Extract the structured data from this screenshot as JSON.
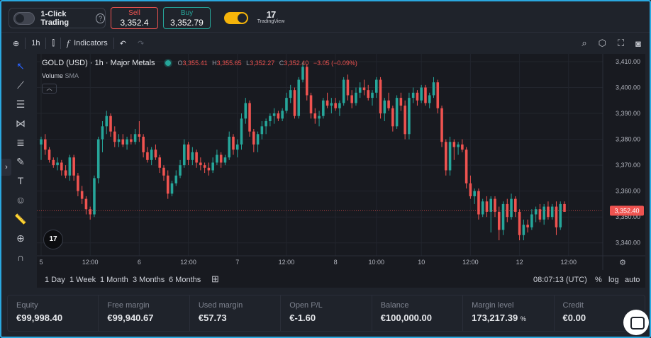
{
  "topbar": {
    "one_click_label": "1-Click Trading",
    "help_icon": "?",
    "sell": {
      "label": "Sell",
      "price": "3,352.4"
    },
    "buy": {
      "label": "Buy",
      "price": "3,352.79"
    },
    "brand_mark": "17",
    "brand_name": "TradingView"
  },
  "chart_toolbar": {
    "interval": "1h",
    "indicators_label": "Indicators",
    "indicators_prefix": "f"
  },
  "legend": {
    "symbol": "GOLD (USD) · 1h · Major Metals",
    "open_label": "O",
    "open": "3,355.41",
    "high_label": "H",
    "high": "3,355.65",
    "low_label": "L",
    "low": "3,352.27",
    "close_label": "C",
    "close": "3,352.40",
    "change": "−3.05 (−0.09%)",
    "volume_label": "Volume",
    "volume_ma": "SMA"
  },
  "range_bar": {
    "ranges": [
      "1 Day",
      "1 Week",
      "1 Month",
      "3 Months",
      "6 Months"
    ],
    "clock": "08:07:13 (UTC)",
    "percent": "%",
    "log": "log",
    "auto": "auto"
  },
  "account": [
    {
      "label": "Equity",
      "value": "€99,998.40"
    },
    {
      "label": "Free margin",
      "value": "€99,940.67"
    },
    {
      "label": "Used margin",
      "value": "€57.73"
    },
    {
      "label": "Open P/L",
      "value": "€-1.60"
    },
    {
      "label": "Balance",
      "value": "€100,000.00"
    },
    {
      "label": "Margin level",
      "value": "173,217.39",
      "suffix": "%"
    },
    {
      "label": "Credit",
      "value": "€0.00"
    }
  ],
  "colors": {
    "up": "#26a69a",
    "down": "#ef5350",
    "accent": "#f5b40a",
    "background": "#181a20"
  },
  "chart_data": {
    "type": "candlestick",
    "ylim": [
      3335,
      3413
    ],
    "y_ticks": [
      3340,
      3350,
      3360,
      3370,
      3380,
      3390,
      3400,
      3410
    ],
    "y_tick_labels": [
      "3,340.00",
      "3,350.00",
      "3,360.00",
      "3,370.00",
      "3,380.00",
      "3,390.00",
      "3,400.00",
      "3,410.00"
    ],
    "x_tick_labels": [
      {
        "label": "5",
        "index": 0
      },
      {
        "label": "12:00",
        "index": 12
      },
      {
        "label": "6",
        "index": 24
      },
      {
        "label": "12:00",
        "index": 36
      },
      {
        "label": "7",
        "index": 48
      },
      {
        "label": "12:00",
        "index": 60
      },
      {
        "label": "8",
        "index": 72
      },
      {
        "label": "10:00",
        "index": 82
      },
      {
        "label": "10",
        "index": 93
      },
      {
        "label": "12:00",
        "index": 105
      },
      {
        "label": "12",
        "index": 117
      },
      {
        "label": "12:00",
        "index": 129
      }
    ],
    "current_price": 3352.4,
    "current_price_label": "3,352.40",
    "candles": [
      [
        3378,
        3381,
        3372,
        3380
      ],
      [
        3380,
        3382,
        3374,
        3376
      ],
      [
        3376,
        3377,
        3371,
        3372
      ],
      [
        3372,
        3373,
        3369,
        3370
      ],
      [
        3370,
        3373,
        3368,
        3371
      ],
      [
        3371,
        3372,
        3366,
        3368
      ],
      [
        3368,
        3370,
        3365,
        3366
      ],
      [
        3366,
        3374,
        3364,
        3373
      ],
      [
        3373,
        3374,
        3364,
        3366
      ],
      [
        3366,
        3367,
        3358,
        3360
      ],
      [
        3360,
        3362,
        3355,
        3357
      ],
      [
        3357,
        3358,
        3351,
        3353
      ],
      [
        3353,
        3354,
        3349,
        3351
      ],
      [
        3351,
        3366,
        3350,
        3365
      ],
      [
        3365,
        3381,
        3363,
        3380
      ],
      [
        3380,
        3387,
        3375,
        3385
      ],
      [
        3385,
        3391,
        3382,
        3389
      ],
      [
        3389,
        3390,
        3381,
        3383
      ],
      [
        3383,
        3385,
        3377,
        3379
      ],
      [
        3379,
        3382,
        3377,
        3380
      ],
      [
        3380,
        3382,
        3377,
        3378
      ],
      [
        3378,
        3381,
        3376,
        3380
      ],
      [
        3380,
        3382,
        3378,
        3379
      ],
      [
        3379,
        3384,
        3378,
        3382
      ],
      [
        3382,
        3387,
        3379,
        3381
      ],
      [
        3381,
        3382,
        3373,
        3375
      ],
      [
        3375,
        3377,
        3371,
        3372
      ],
      [
        3372,
        3377,
        3370,
        3376
      ],
      [
        3376,
        3378,
        3372,
        3373
      ],
      [
        3373,
        3374,
        3367,
        3369
      ],
      [
        3369,
        3370,
        3364,
        3366
      ],
      [
        3366,
        3368,
        3357,
        3359
      ],
      [
        3359,
        3364,
        3358,
        3363
      ],
      [
        3363,
        3368,
        3362,
        3366
      ],
      [
        3366,
        3372,
        3365,
        3370
      ],
      [
        3370,
        3380,
        3369,
        3378
      ],
      [
        3378,
        3379,
        3370,
        3372
      ],
      [
        3372,
        3377,
        3370,
        3375
      ],
      [
        3375,
        3376,
        3369,
        3371
      ],
      [
        3371,
        3373,
        3368,
        3370
      ],
      [
        3370,
        3371,
        3367,
        3369
      ],
      [
        3369,
        3371,
        3366,
        3368
      ],
      [
        3368,
        3373,
        3367,
        3371
      ],
      [
        3371,
        3376,
        3370,
        3374
      ],
      [
        3374,
        3375,
        3369,
        3371
      ],
      [
        3371,
        3374,
        3370,
        3373
      ],
      [
        3373,
        3383,
        3372,
        3381
      ],
      [
        3381,
        3382,
        3374,
        3376
      ],
      [
        3376,
        3380,
        3373,
        3378
      ],
      [
        3378,
        3390,
        3376,
        3388
      ],
      [
        3388,
        3396,
        3386,
        3394
      ],
      [
        3394,
        3395,
        3381,
        3383
      ],
      [
        3383,
        3384,
        3375,
        3378
      ],
      [
        3378,
        3383,
        3375,
        3382
      ],
      [
        3382,
        3387,
        3380,
        3385
      ],
      [
        3385,
        3388,
        3382,
        3387
      ],
      [
        3387,
        3390,
        3385,
        3389
      ],
      [
        3389,
        3392,
        3386,
        3390
      ],
      [
        3390,
        3391,
        3387,
        3388
      ],
      [
        3388,
        3392,
        3387,
        3391
      ],
      [
        3391,
        3398,
        3390,
        3396
      ],
      [
        3396,
        3401,
        3394,
        3399
      ],
      [
        3399,
        3400,
        3388,
        3389
      ],
      [
        3389,
        3404,
        3388,
        3403
      ],
      [
        3403,
        3410,
        3402,
        3408
      ],
      [
        3408,
        3409,
        3395,
        3397
      ],
      [
        3397,
        3398,
        3388,
        3390
      ],
      [
        3390,
        3392,
        3386,
        3388
      ],
      [
        3388,
        3391,
        3385,
        3389
      ],
      [
        3389,
        3396,
        3388,
        3395
      ],
      [
        3395,
        3398,
        3392,
        3393
      ],
      [
        3393,
        3396,
        3390,
        3394
      ],
      [
        3394,
        3396,
        3391,
        3392
      ],
      [
        3392,
        3395,
        3389,
        3394
      ],
      [
        3394,
        3404,
        3393,
        3403
      ],
      [
        3403,
        3405,
        3395,
        3397
      ],
      [
        3397,
        3399,
        3392,
        3394
      ],
      [
        3394,
        3400,
        3393,
        3398
      ],
      [
        3398,
        3402,
        3396,
        3400
      ],
      [
        3400,
        3403,
        3397,
        3399
      ],
      [
        3399,
        3401,
        3395,
        3396
      ],
      [
        3396,
        3399,
        3393,
        3398
      ],
      [
        3398,
        3404,
        3396,
        3403
      ],
      [
        3403,
        3404,
        3388,
        3390
      ],
      [
        3390,
        3396,
        3387,
        3395
      ],
      [
        3395,
        3398,
        3391,
        3392
      ],
      [
        3392,
        3393,
        3383,
        3385
      ],
      [
        3385,
        3397,
        3384,
        3396
      ],
      [
        3396,
        3398,
        3391,
        3393
      ],
      [
        3393,
        3395,
        3380,
        3382
      ],
      [
        3382,
        3398,
        3380,
        3396
      ],
      [
        3396,
        3400,
        3394,
        3398
      ],
      [
        3398,
        3399,
        3393,
        3395
      ],
      [
        3395,
        3401,
        3394,
        3400
      ],
      [
        3400,
        3401,
        3393,
        3394
      ],
      [
        3394,
        3398,
        3392,
        3397
      ],
      [
        3397,
        3404,
        3396,
        3402
      ],
      [
        3402,
        3403,
        3390,
        3392
      ],
      [
        3392,
        3393,
        3377,
        3379
      ],
      [
        3379,
        3380,
        3366,
        3368
      ],
      [
        3368,
        3381,
        3366,
        3379
      ],
      [
        3379,
        3380,
        3372,
        3377
      ],
      [
        3377,
        3379,
        3374,
        3378
      ],
      [
        3378,
        3380,
        3375,
        3376
      ],
      [
        3376,
        3377,
        3361,
        3363
      ],
      [
        3363,
        3366,
        3357,
        3358
      ],
      [
        3358,
        3361,
        3355,
        3360
      ],
      [
        3360,
        3361,
        3349,
        3351
      ],
      [
        3351,
        3357,
        3350,
        3356
      ],
      [
        3356,
        3358,
        3350,
        3352
      ],
      [
        3352,
        3358,
        3344,
        3357
      ],
      [
        3357,
        3358,
        3350,
        3352
      ],
      [
        3352,
        3354,
        3341,
        3345
      ],
      [
        3345,
        3356,
        3343,
        3355
      ],
      [
        3355,
        3357,
        3348,
        3350
      ],
      [
        3350,
        3359,
        3349,
        3357
      ],
      [
        3357,
        3358,
        3350,
        3352
      ],
      [
        3352,
        3353,
        3341,
        3343
      ],
      [
        3343,
        3349,
        3341,
        3347
      ],
      [
        3347,
        3349,
        3344,
        3346
      ],
      [
        3346,
        3353,
        3345,
        3351
      ],
      [
        3351,
        3354,
        3348,
        3353
      ],
      [
        3353,
        3355,
        3348,
        3349
      ],
      [
        3349,
        3355,
        3347,
        3354
      ],
      [
        3354,
        3356,
        3349,
        3350
      ],
      [
        3350,
        3355,
        3349,
        3354
      ],
      [
        3354,
        3356,
        3343,
        3346
      ],
      [
        3346,
        3356,
        3345,
        3355
      ],
      [
        3355,
        3356,
        3352,
        3352
      ]
    ]
  }
}
